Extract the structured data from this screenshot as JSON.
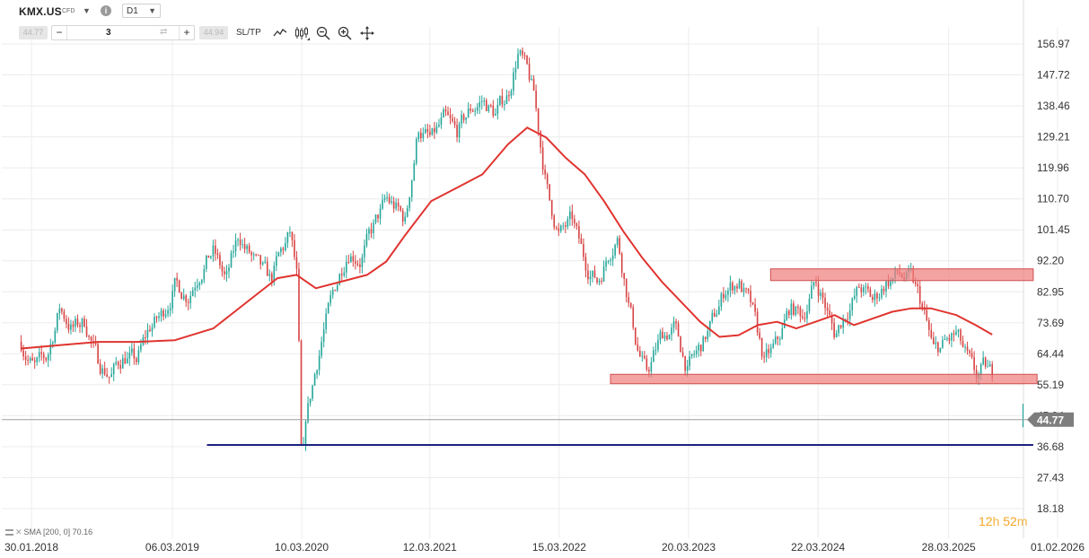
{
  "header": {
    "symbol": "KMX.US",
    "instrument_type": "CFD",
    "timeframe": "D1",
    "bid": "44.77",
    "ask": "44.94",
    "volume": "3",
    "sltp_label": "SL/TP",
    "icons": [
      "chevron-down-icon",
      "info-icon",
      "line-chart-icon",
      "candles-icon",
      "zoom-out-icon",
      "zoom-in-icon",
      "pan-icon"
    ]
  },
  "status": {
    "indicator_label": "SMA [200, 0] 70.16",
    "timer_hours": "12",
    "timer_hours_unit": "h",
    "timer_minutes": "52",
    "timer_minutes_unit": "m"
  },
  "chart_data": {
    "type": "candlestick",
    "symbol": "KMX.US",
    "timeframe": "D1",
    "ylim": [
      18.18,
      161
    ],
    "y_ticks": [
      "156.97",
      "147.72",
      "138.46",
      "129.21",
      "119.96",
      "110.70",
      "101.45",
      "92.20",
      "82.95",
      "73.69",
      "64.44",
      "55.19",
      "45.94",
      "36.68",
      "27.43",
      "18.18"
    ],
    "x_ticks": [
      "30.01.2018",
      "06.03.2019",
      "10.03.2020",
      "12.03.2021",
      "15.03.2022",
      "20.03.2023",
      "22.03.2024",
      "28.03.2025",
      "01.02.2026"
    ],
    "x_tick_years": [
      2018.08,
      2019.18,
      2020.19,
      2021.19,
      2022.2,
      2023.21,
      2024.22,
      2025.24,
      2026.09
    ],
    "current_price": "44.77",
    "price_path": [
      [
        2018.0,
        68
      ],
      [
        2018.1,
        60
      ],
      [
        2018.2,
        63
      ],
      [
        2018.3,
        78
      ],
      [
        2018.4,
        72
      ],
      [
        2018.5,
        74
      ],
      [
        2018.6,
        62
      ],
      [
        2018.7,
        58
      ],
      [
        2018.8,
        64
      ],
      [
        2018.9,
        62
      ],
      [
        2019.0,
        72
      ],
      [
        2019.1,
        76
      ],
      [
        2019.2,
        85
      ],
      [
        2019.3,
        82
      ],
      [
        2019.4,
        90
      ],
      [
        2019.5,
        95
      ],
      [
        2019.6,
        86
      ],
      [
        2019.7,
        100
      ],
      [
        2019.75,
        96
      ],
      [
        2019.85,
        90
      ],
      [
        2019.95,
        86
      ],
      [
        2020.0,
        92
      ],
      [
        2020.1,
        100
      ],
      [
        2020.15,
        88
      ],
      [
        2020.19,
        37
      ],
      [
        2020.25,
        50
      ],
      [
        2020.35,
        70
      ],
      [
        2020.45,
        84
      ],
      [
        2020.55,
        96
      ],
      [
        2020.65,
        93
      ],
      [
        2020.75,
        102
      ],
      [
        2020.85,
        110
      ],
      [
        2020.92,
        108
      ],
      [
        2021.0,
        104
      ],
      [
        2021.05,
        118
      ],
      [
        2021.1,
        132
      ],
      [
        2021.2,
        128
      ],
      [
        2021.3,
        134
      ],
      [
        2021.4,
        130
      ],
      [
        2021.5,
        137
      ],
      [
        2021.6,
        140
      ],
      [
        2021.7,
        136
      ],
      [
        2021.8,
        142
      ],
      [
        2021.88,
        155
      ],
      [
        2021.95,
        148
      ],
      [
        2022.0,
        142
      ],
      [
        2022.05,
        128
      ],
      [
        2022.12,
        110
      ],
      [
        2022.2,
        100
      ],
      [
        2022.3,
        104
      ],
      [
        2022.4,
        92
      ],
      [
        2022.5,
        86
      ],
      [
        2022.6,
        96
      ],
      [
        2022.65,
        100
      ],
      [
        2022.72,
        85
      ],
      [
        2022.8,
        68
      ],
      [
        2022.88,
        58
      ],
      [
        2022.95,
        65
      ],
      [
        2023.0,
        70
      ],
      [
        2023.1,
        72
      ],
      [
        2023.2,
        60
      ],
      [
        2023.3,
        66
      ],
      [
        2023.4,
        74
      ],
      [
        2023.5,
        84
      ],
      [
        2023.6,
        86
      ],
      [
        2023.7,
        78
      ],
      [
        2023.8,
        62
      ],
      [
        2023.9,
        67
      ],
      [
        2024.0,
        78
      ],
      [
        2024.1,
        76
      ],
      [
        2024.2,
        86
      ],
      [
        2024.25,
        82
      ],
      [
        2024.35,
        70
      ],
      [
        2024.45,
        78
      ],
      [
        2024.55,
        84
      ],
      [
        2024.65,
        80
      ],
      [
        2024.75,
        86
      ],
      [
        2024.85,
        88
      ],
      [
        2024.95,
        86
      ],
      [
        2025.0,
        82
      ],
      [
        2025.05,
        76
      ],
      [
        2025.12,
        65
      ],
      [
        2025.2,
        67
      ],
      [
        2025.3,
        70
      ],
      [
        2025.38,
        63
      ],
      [
        2025.45,
        57
      ],
      [
        2025.52,
        60
      ],
      [
        2025.58,
        58
      ]
    ],
    "last_bar": {
      "x": 2025.82,
      "open": 45.5,
      "close": 44.77,
      "high": 49.5,
      "low": 42.5
    },
    "sma_200": {
      "label": "SMA [200, 0] 70.16",
      "value": 70.16,
      "color": "#e0342f",
      "points": [
        [
          2018.0,
          66
        ],
        [
          2018.3,
          67
        ],
        [
          2018.6,
          68
        ],
        [
          2018.9,
          68
        ],
        [
          2019.2,
          68.5
        ],
        [
          2019.5,
          72
        ],
        [
          2019.8,
          81
        ],
        [
          2020.0,
          87
        ],
        [
          2020.15,
          88
        ],
        [
          2020.3,
          84
        ],
        [
          2020.5,
          86
        ],
        [
          2020.7,
          88
        ],
        [
          2020.85,
          92
        ],
        [
          2021.0,
          100
        ],
        [
          2021.2,
          110
        ],
        [
          2021.4,
          114
        ],
        [
          2021.6,
          118
        ],
        [
          2021.8,
          127
        ],
        [
          2021.95,
          132
        ],
        [
          2022.1,
          129
        ],
        [
          2022.25,
          123
        ],
        [
          2022.4,
          118
        ],
        [
          2022.55,
          110
        ],
        [
          2022.7,
          101
        ],
        [
          2022.85,
          93
        ],
        [
          2023.0,
          86
        ],
        [
          2023.15,
          80
        ],
        [
          2023.3,
          74
        ],
        [
          2023.45,
          69.5
        ],
        [
          2023.6,
          70
        ],
        [
          2023.75,
          73
        ],
        [
          2023.9,
          74
        ],
        [
          2024.05,
          72
        ],
        [
          2024.2,
          74
        ],
        [
          2024.35,
          76
        ],
        [
          2024.5,
          73
        ],
        [
          2024.65,
          75
        ],
        [
          2024.8,
          77
        ],
        [
          2024.95,
          78
        ],
        [
          2025.1,
          78
        ],
        [
          2025.3,
          76
        ],
        [
          2025.45,
          73
        ],
        [
          2025.58,
          70.16
        ]
      ]
    },
    "zones": [
      {
        "name": "resistance-zone",
        "x0": 2023.85,
        "x1": 2025.9,
        "y0": 86.3,
        "y1": 89.8,
        "color": "#f08080"
      },
      {
        "name": "support-zone",
        "x0": 2022.6,
        "x1": 2025.93,
        "y0": 55.5,
        "y1": 58.3,
        "color": "#f08080"
      }
    ],
    "support_line": {
      "x0": 2019.45,
      "x1": 2025.9,
      "y": 37.2,
      "color": "#1a237e"
    },
    "grid": true,
    "legend": "bottom-left"
  },
  "colors": {
    "up": "#26a69a",
    "down": "#d74242",
    "grid": "#ececec",
    "price_line": "#9e9e9e",
    "price_tag_bg": "#7d7d7d",
    "timer": "#f5a623",
    "zone_fill": "#f08080",
    "support_line": "#1a237e",
    "sma": "#e0342f"
  }
}
